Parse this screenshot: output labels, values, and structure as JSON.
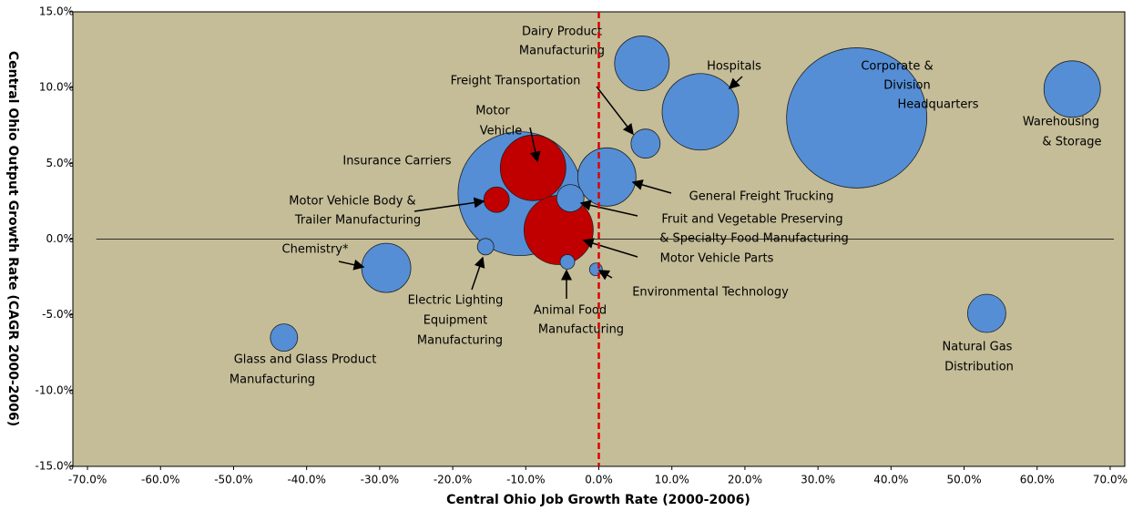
{
  "chart_data": {
    "type": "bubble",
    "x_label": "Central Ohio Job Growth Rate (2000-2006)",
    "y_label": "Central Ohio Output Growth Rate (CAGR 2000-2006)",
    "xlim": [
      -72,
      72
    ],
    "ylim": [
      -15,
      15
    ],
    "xticks": [
      {
        "value": -70,
        "label": "-70.0%"
      },
      {
        "value": -60,
        "label": "-60.0%"
      },
      {
        "value": -50,
        "label": "-50.0%"
      },
      {
        "value": -40,
        "label": "-40.0%"
      },
      {
        "value": -30,
        "label": "-30.0%"
      },
      {
        "value": -20,
        "label": "-20.0%"
      },
      {
        "value": -10,
        "label": "-10.0%"
      },
      {
        "value": 0,
        "label": "0.0%"
      },
      {
        "value": 10,
        "label": "10.0%"
      },
      {
        "value": 20,
        "label": "20.0%"
      },
      {
        "value": 30,
        "label": "30.0%"
      },
      {
        "value": 40,
        "label": "40.0%"
      },
      {
        "value": 50,
        "label": "50.0%"
      },
      {
        "value": 60,
        "label": "60.0%"
      },
      {
        "value": 70,
        "label": "70.0%"
      }
    ],
    "yticks": [
      {
        "value": -15,
        "label": "-15.0%"
      },
      {
        "value": -10,
        "label": "-10.0%"
      },
      {
        "value": -5,
        "label": "-5.0%"
      },
      {
        "value": 0,
        "label": "0.0%"
      },
      {
        "value": 5,
        "label": "5.0%"
      },
      {
        "value": 10,
        "label": "10.0%"
      },
      {
        "value": 15,
        "label": "15.0%"
      }
    ],
    "reference_x": 0,
    "points": [
      {
        "label": [
          "Insurance Carriers"
        ],
        "x": -10.8,
        "y": 3.0,
        "size": 68,
        "color": "#558ed5"
      },
      {
        "label": [
          "Dairy Product",
          "Manufacturing"
        ],
        "x": 5.9,
        "y": 11.6,
        "size": 30,
        "color": "#558ed5"
      },
      {
        "label": [
          "Hospitals"
        ],
        "x": 13.9,
        "y": 8.4,
        "size": 42,
        "color": "#558ed5"
      },
      {
        "label": [
          "Corporate &",
          "Division",
          "Headquarters"
        ],
        "x": 35.3,
        "y": 8.0,
        "size": 77,
        "color": "#558ed5"
      },
      {
        "label": [
          "Warehousing",
          "& Storage"
        ],
        "x": 64.8,
        "y": 9.9,
        "size": 31,
        "color": "#558ed5"
      },
      {
        "label": [
          "Freight Transportation"
        ],
        "x": 6.4,
        "y": 6.3,
        "size": 16,
        "color": "#558ed5"
      },
      {
        "label": [
          "General Freight Trucking"
        ],
        "x": 1.1,
        "y": 4.1,
        "size": 32,
        "color": "#558ed5"
      },
      {
        "label": [
          "Motor",
          "Vehicle"
        ],
        "x": -9.0,
        "y": 4.7,
        "size": 36,
        "color": "#c00000"
      },
      {
        "label": [
          "Motor Vehicle Body &",
          "Trailer Manufacturing"
        ],
        "x": -14.0,
        "y": 2.6,
        "size": 14,
        "color": "#c00000"
      },
      {
        "label": [
          "Motor Vehicle Parts"
        ],
        "x": -5.5,
        "y": 0.6,
        "size": 38,
        "color": "#c00000"
      },
      {
        "label": [
          "Fruit and Vegetable Preserving",
          "& Specialty Food Manufacturing"
        ],
        "x": -3.9,
        "y": 2.7,
        "size": 15,
        "color": "#558ed5"
      },
      {
        "label": [
          "Electric Lighting",
          "Equipment",
          "Manufacturing"
        ],
        "x": -15.5,
        "y": -0.5,
        "size": 9,
        "color": "#558ed5"
      },
      {
        "label": [
          "Animal Food",
          "Manufacturing"
        ],
        "x": -4.3,
        "y": -1.5,
        "size": 8,
        "color": "#558ed5"
      },
      {
        "label": [
          "Environmental Technology"
        ],
        "x": -0.4,
        "y": -2.0,
        "size": 7,
        "color": "#558ed5"
      },
      {
        "label": [
          "Chemistry*"
        ],
        "x": -29.1,
        "y": -1.9,
        "size": 27,
        "color": "#558ed5"
      },
      {
        "label": [
          "Glass and Glass Product",
          "Manufacturing"
        ],
        "x": -43.1,
        "y": -6.5,
        "size": 15,
        "color": "#558ed5"
      },
      {
        "label": [
          "Natural Gas",
          "Distribution"
        ],
        "x": 53.1,
        "y": -4.9,
        "size": 21,
        "color": "#558ed5"
      }
    ]
  }
}
